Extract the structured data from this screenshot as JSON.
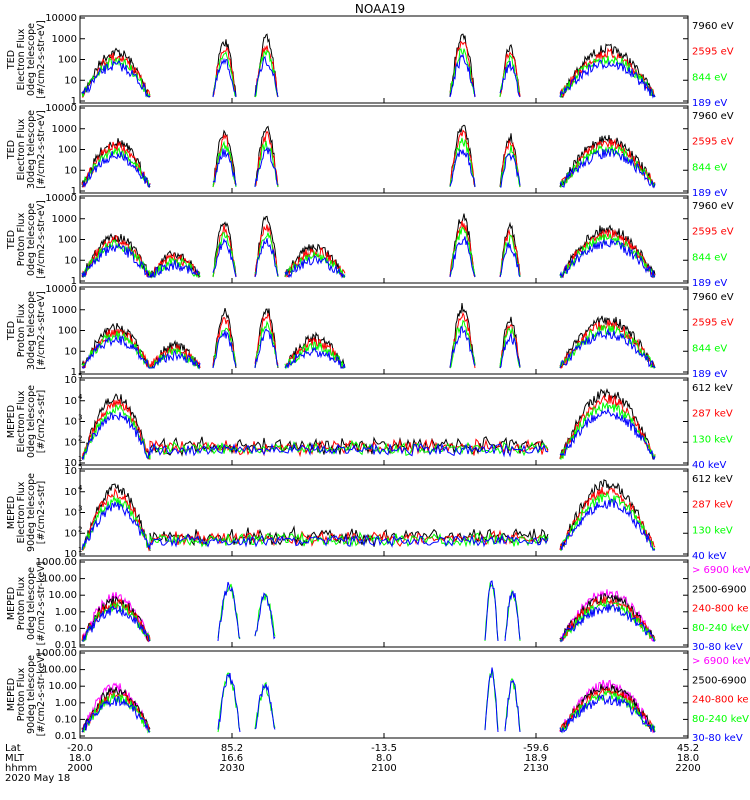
{
  "title": "NOAA19",
  "colors": {
    "black": "#000000",
    "red": "#ff0000",
    "green": "#00ff00",
    "blue": "#0000ff",
    "magenta": "#ff00ff"
  },
  "xaxis": {
    "rows": [
      {
        "label": "Lat",
        "values": [
          "-20.0",
          "85.2",
          "-13.5",
          "-59.6",
          "45.2"
        ]
      },
      {
        "label": "MLT",
        "values": [
          "18.0",
          "16.6",
          "8.0",
          "18.9",
          "18.0"
        ]
      },
      {
        "label": "hhmm",
        "values": [
          "2000",
          "2030",
          "2100",
          "2130",
          "2200"
        ]
      }
    ],
    "date": "2020 May 18"
  },
  "chart_data": [
    {
      "type": "line",
      "title": "NOAA19",
      "ylabel": [
        "TED",
        "Electron Flux",
        "0deg telescope",
        "[#/cm2-s-str-eV]"
      ],
      "ylim": [
        1,
        10000
      ],
      "log": true,
      "yticks": [
        "1",
        "10",
        "100",
        "1000",
        "10000"
      ],
      "series": [
        {
          "name": "7960 eV",
          "color": "black"
        },
        {
          "name": "2595 eV",
          "color": "red"
        },
        {
          "name": "844 eV",
          "color": "green"
        },
        {
          "name": "189 eV",
          "color": "blue"
        }
      ]
    },
    {
      "type": "line",
      "ylabel": [
        "TED",
        "Electron Flux",
        "30deg telescope",
        "[#/cm2-s-str-eV]"
      ],
      "ylim": [
        1,
        10000
      ],
      "log": true,
      "yticks": [
        "1",
        "10",
        "100",
        "1000",
        "10000"
      ],
      "series": [
        {
          "name": "7960 eV",
          "color": "black"
        },
        {
          "name": "2595 eV",
          "color": "red"
        },
        {
          "name": "844 eV",
          "color": "green"
        },
        {
          "name": "189 eV",
          "color": "blue"
        }
      ]
    },
    {
      "type": "line",
      "ylabel": [
        "TED",
        "Proton Flux",
        "0deg telescope",
        "[#/cm2-s-str-eV]"
      ],
      "ylim": [
        1,
        10000
      ],
      "log": true,
      "yticks": [
        "1",
        "10",
        "100",
        "1000",
        "10000"
      ],
      "series": [
        {
          "name": "7960 eV",
          "color": "black"
        },
        {
          "name": "2595 eV",
          "color": "red"
        },
        {
          "name": "844 eV",
          "color": "green"
        },
        {
          "name": "189 eV",
          "color": "blue"
        }
      ]
    },
    {
      "type": "line",
      "ylabel": [
        "TED",
        "Proton Flux",
        "30deg telescope",
        "[#/cm2-s-str-eV]"
      ],
      "ylim": [
        1,
        10000
      ],
      "log": true,
      "yticks": [
        "1",
        "10",
        "100",
        "1000",
        "10000"
      ],
      "series": [
        {
          "name": "7960 eV",
          "color": "black"
        },
        {
          "name": "2595 eV",
          "color": "red"
        },
        {
          "name": "844 eV",
          "color": "green"
        },
        {
          "name": "189 eV",
          "color": "blue"
        }
      ]
    },
    {
      "type": "line",
      "ylabel": [
        "MEPED",
        "Electron Flux",
        "0deg telescope",
        "[#/cm2-s-str]"
      ],
      "ylim": [
        10,
        100000
      ],
      "log": true,
      "tickstyle": "pow10",
      "yticks": [
        "1",
        "2",
        "3",
        "4",
        "5"
      ],
      "series": [
        {
          "name": "612 keV",
          "color": "black"
        },
        {
          "name": "287 keV",
          "color": "red"
        },
        {
          "name": "130 keV",
          "color": "green"
        },
        {
          "name": "40 keV",
          "color": "blue"
        }
      ]
    },
    {
      "type": "line",
      "ylabel": [
        "MEPED",
        "Electron Flux",
        "90deg telescope",
        "[#/cm2-s-str]"
      ],
      "ylim": [
        10,
        100000
      ],
      "log": true,
      "tickstyle": "pow10",
      "yticks": [
        "1",
        "2",
        "3",
        "4",
        "5"
      ],
      "series": [
        {
          "name": "612 keV",
          "color": "black"
        },
        {
          "name": "287 keV",
          "color": "red"
        },
        {
          "name": "130 keV",
          "color": "green"
        },
        {
          "name": "40 keV",
          "color": "blue"
        }
      ]
    },
    {
      "type": "line",
      "ylabel": [
        "MEPED",
        "Proton Flux",
        "0deg telescope",
        "[#/cm2-s-str-keV]"
      ],
      "ylim": [
        0.01,
        1000
      ],
      "log": true,
      "yticks": [
        "0.01",
        "0.10",
        "1.00",
        "10.00",
        "100.00",
        "1000.00"
      ],
      "series": [
        {
          "name": "> 6900 keV",
          "color": "magenta"
        },
        {
          "name": "2500-6900",
          "color": "black"
        },
        {
          "name": "240-800 ke",
          "color": "red"
        },
        {
          "name": "80-240 keV",
          "color": "green"
        },
        {
          "name": "30-80 keV",
          "color": "blue"
        }
      ]
    },
    {
      "type": "line",
      "ylabel": [
        "MEPED",
        "Proton Flux",
        "90deg telescope",
        "[#/cm2-s-str-keV]"
      ],
      "ylim": [
        0.01,
        1000
      ],
      "log": true,
      "yticks": [
        "0.01",
        "0.10",
        "1.00",
        "10.00",
        "100.00",
        "1000.00"
      ],
      "series": [
        {
          "name": "> 6900 keV",
          "color": "magenta"
        },
        {
          "name": "2500-6900",
          "color": "black"
        },
        {
          "name": "240-800 ke",
          "color": "red"
        },
        {
          "name": "80-240 keV",
          "color": "green"
        },
        {
          "name": "30-80 keV",
          "color": "blue"
        }
      ]
    }
  ]
}
